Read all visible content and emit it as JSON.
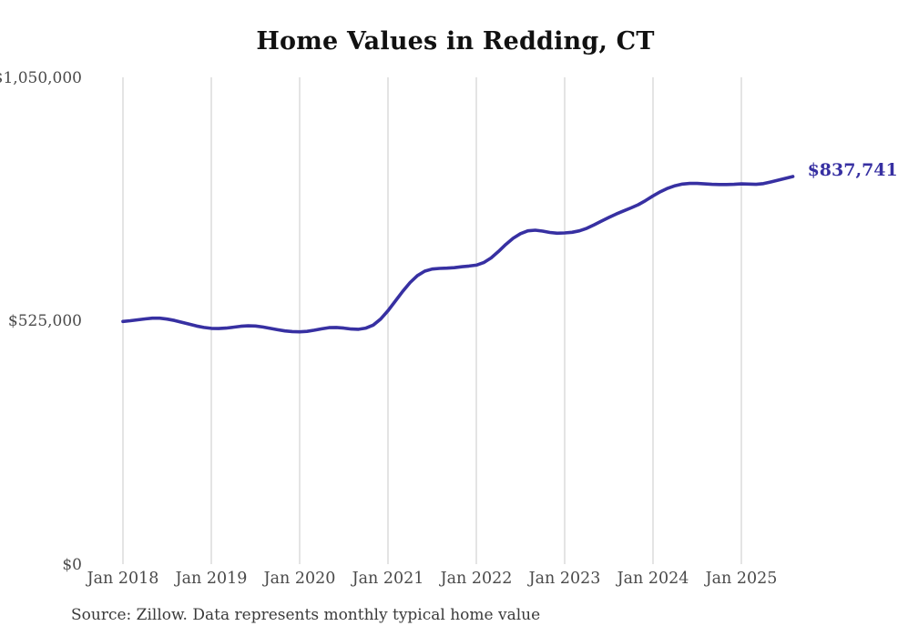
{
  "title": "Home Values in Redding, CT",
  "source_note": "Source: Zillow. Data represents monthly typical home value",
  "colors": {
    "line": "#3730a2",
    "grid": "#c9c9c9",
    "axis_text": "#4a4a4a",
    "title_text": "#111111",
    "latest_label_text": "#3730a2",
    "background": "#ffffff"
  },
  "chart_data": {
    "type": "line",
    "title": "Home Values in Redding, CT",
    "xlabel": "",
    "ylabel": "",
    "ylim": [
      0,
      1050000
    ],
    "grid": "vertical-only",
    "legend": "none",
    "x_frequency": "monthly",
    "x_start": "2018-01",
    "x_end": "2025-08",
    "x_tick_labels": [
      "Jan 2018",
      "Jan 2019",
      "Jan 2020",
      "Jan 2021",
      "Jan 2022",
      "Jan 2023",
      "Jan 2024",
      "Jan 2025"
    ],
    "y_ticks": [
      {
        "label": "$1,050,000",
        "value": 1050000
      },
      {
        "label": "$525,000",
        "value": 525000
      },
      {
        "label": "$0",
        "value": 0
      }
    ],
    "series": [
      {
        "name": "Monthly typical home value",
        "values": [
          525000,
          526500,
          528500,
          530500,
          532000,
          532000,
          530000,
          527000,
          523000,
          519000,
          515000,
          512000,
          510000,
          509500,
          510500,
          512500,
          514500,
          515500,
          515000,
          513000,
          510000,
          507000,
          504500,
          503000,
          502500,
          503500,
          506000,
          509000,
          511500,
          512000,
          510500,
          508500,
          508000,
          510500,
          517000,
          530000,
          548000,
          569000,
          590000,
          609000,
          624000,
          633500,
          638000,
          639500,
          640000,
          641000,
          643000,
          644500,
          646500,
          652000,
          662000,
          676000,
          691000,
          704500,
          714500,
          720500,
          722000,
          720000,
          717000,
          715500,
          716000,
          717500,
          720500,
          726000,
          733500,
          741500,
          749500,
          757000,
          763500,
          770000,
          777000,
          786000,
          796000,
          805000,
          812500,
          818000,
          821500,
          823000,
          823000,
          822000,
          821000,
          820500,
          820500,
          821000,
          822000,
          821500,
          821000,
          822500,
          826000,
          830000,
          834000,
          837741
        ]
      }
    ],
    "last_value": 837741,
    "last_point_label": "$837,741"
  }
}
